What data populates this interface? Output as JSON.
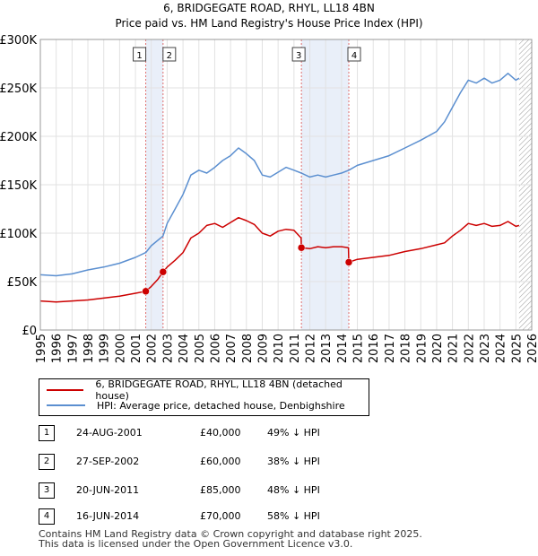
{
  "title_line1": "6, BRIDGEGATE ROAD, RHYL, LL18 4BN",
  "title_line2": "Price paid vs. HM Land Registry's House Price Index (HPI)",
  "colors": {
    "property": "#cc0000",
    "hpi": "#5b8fd0",
    "shade": "#dfe8f7"
  },
  "chart_data": {
    "type": "line",
    "x_ticks": [
      "1995",
      "1996",
      "1997",
      "1998",
      "1999",
      "2000",
      "2001",
      "2002",
      "2003",
      "2004",
      "2005",
      "2006",
      "2007",
      "2008",
      "2009",
      "2010",
      "2011",
      "2012",
      "2013",
      "2014",
      "2015",
      "2016",
      "2017",
      "2018",
      "2019",
      "2020",
      "2021",
      "2022",
      "2023",
      "2024",
      "2025",
      "2026"
    ],
    "y_ticks": [
      "£0",
      "£50K",
      "£100K",
      "£150K",
      "£200K",
      "£250K",
      "£300K"
    ],
    "xlim": [
      1995,
      2026
    ],
    "ylim": [
      0,
      300000
    ],
    "grid": true,
    "series": [
      {
        "name": "6, BRIDGEGATE ROAD, RHYL, LL18 4BN (detached house)",
        "color": "#cc0000",
        "points": [
          [
            1995.0,
            30000
          ],
          [
            1996.0,
            29000
          ],
          [
            1997.0,
            30000
          ],
          [
            1998.0,
            31000
          ],
          [
            1999.0,
            33000
          ],
          [
            2000.0,
            35000
          ],
          [
            2001.0,
            38000
          ],
          [
            2001.65,
            40000
          ],
          [
            2002.0,
            45000
          ],
          [
            2002.4,
            52000
          ],
          [
            2002.74,
            60000
          ],
          [
            2003.0,
            65000
          ],
          [
            2003.5,
            72000
          ],
          [
            2004.0,
            80000
          ],
          [
            2004.5,
            95000
          ],
          [
            2005.0,
            100000
          ],
          [
            2005.5,
            108000
          ],
          [
            2006.0,
            110000
          ],
          [
            2006.5,
            106000
          ],
          [
            2007.0,
            111000
          ],
          [
            2007.5,
            116000
          ],
          [
            2008.0,
            113000
          ],
          [
            2008.5,
            109000
          ],
          [
            2009.0,
            100000
          ],
          [
            2009.5,
            97000
          ],
          [
            2010.0,
            102000
          ],
          [
            2010.5,
            104000
          ],
          [
            2011.0,
            103000
          ],
          [
            2011.45,
            95000
          ],
          [
            2011.47,
            85000
          ],
          [
            2012.0,
            84000
          ],
          [
            2012.5,
            86000
          ],
          [
            2013.0,
            85000
          ],
          [
            2013.5,
            86000
          ],
          [
            2014.0,
            86000
          ],
          [
            2014.44,
            85000
          ],
          [
            2014.46,
            70000
          ],
          [
            2015.0,
            73000
          ],
          [
            2016.0,
            75000
          ],
          [
            2017.0,
            77000
          ],
          [
            2018.0,
            81000
          ],
          [
            2019.0,
            84000
          ],
          [
            2020.0,
            88000
          ],
          [
            2020.5,
            90000
          ],
          [
            2021.0,
            97000
          ],
          [
            2021.5,
            103000
          ],
          [
            2022.0,
            110000
          ],
          [
            2022.5,
            108000
          ],
          [
            2023.0,
            110000
          ],
          [
            2023.5,
            107000
          ],
          [
            2024.0,
            108000
          ],
          [
            2024.5,
            112000
          ],
          [
            2025.0,
            107000
          ],
          [
            2025.2,
            108000
          ]
        ]
      },
      {
        "name": "HPI: Average price, detached house, Denbighshire",
        "color": "#5b8fd0",
        "points": [
          [
            1995.0,
            57000
          ],
          [
            1996.0,
            56000
          ],
          [
            1997.0,
            58000
          ],
          [
            1998.0,
            62000
          ],
          [
            1999.0,
            65000
          ],
          [
            2000.0,
            69000
          ],
          [
            2001.0,
            75000
          ],
          [
            2001.65,
            80000
          ],
          [
            2002.0,
            87000
          ],
          [
            2002.74,
            97000
          ],
          [
            2003.0,
            110000
          ],
          [
            2003.5,
            125000
          ],
          [
            2004.0,
            140000
          ],
          [
            2004.5,
            160000
          ],
          [
            2005.0,
            165000
          ],
          [
            2005.5,
            162000
          ],
          [
            2006.0,
            168000
          ],
          [
            2006.5,
            175000
          ],
          [
            2007.0,
            180000
          ],
          [
            2007.5,
            188000
          ],
          [
            2008.0,
            182000
          ],
          [
            2008.5,
            175000
          ],
          [
            2009.0,
            160000
          ],
          [
            2009.5,
            158000
          ],
          [
            2010.0,
            163000
          ],
          [
            2010.5,
            168000
          ],
          [
            2011.0,
            165000
          ],
          [
            2011.47,
            162000
          ],
          [
            2012.0,
            158000
          ],
          [
            2012.5,
            160000
          ],
          [
            2013.0,
            158000
          ],
          [
            2013.5,
            160000
          ],
          [
            2014.0,
            162000
          ],
          [
            2014.46,
            165000
          ],
          [
            2015.0,
            170000
          ],
          [
            2016.0,
            175000
          ],
          [
            2017.0,
            180000
          ],
          [
            2018.0,
            188000
          ],
          [
            2019.0,
            196000
          ],
          [
            2020.0,
            205000
          ],
          [
            2020.5,
            215000
          ],
          [
            2021.0,
            230000
          ],
          [
            2021.5,
            245000
          ],
          [
            2022.0,
            258000
          ],
          [
            2022.5,
            255000
          ],
          [
            2023.0,
            260000
          ],
          [
            2023.5,
            255000
          ],
          [
            2024.0,
            258000
          ],
          [
            2024.5,
            265000
          ],
          [
            2025.0,
            258000
          ],
          [
            2025.2,
            260000
          ]
        ]
      }
    ],
    "sales": [
      {
        "n": "1",
        "date": "24-AUG-2001",
        "price": "£40,000",
        "hpi": "49% ↓ HPI",
        "x": 2001.65,
        "y": 40000
      },
      {
        "n": "2",
        "date": "27-SEP-2002",
        "price": "£60,000",
        "hpi": "38% ↓ HPI",
        "x": 2002.74,
        "y": 60000
      },
      {
        "n": "3",
        "date": "20-JUN-2011",
        "price": "£85,000",
        "hpi": "48% ↓ HPI",
        "x": 2011.47,
        "y": 85000
      },
      {
        "n": "4",
        "date": "16-JUN-2014",
        "price": "£70,000",
        "hpi": "58% ↓ HPI",
        "x": 2014.46,
        "y": 70000
      }
    ],
    "shaded_ranges": [
      [
        2001.65,
        2002.74
      ],
      [
        2011.47,
        2014.46
      ]
    ],
    "hatch_from": 2025.2
  },
  "legend": {
    "property_label": "6, BRIDGEGATE ROAD, RHYL, LL18 4BN (detached house)",
    "hpi_label": "HPI: Average price, detached house, Denbighshire"
  },
  "footer_line1": "Contains HM Land Registry data © Crown copyright and database right 2025.",
  "footer_line2": "This data is licensed under the Open Government Licence v3.0."
}
